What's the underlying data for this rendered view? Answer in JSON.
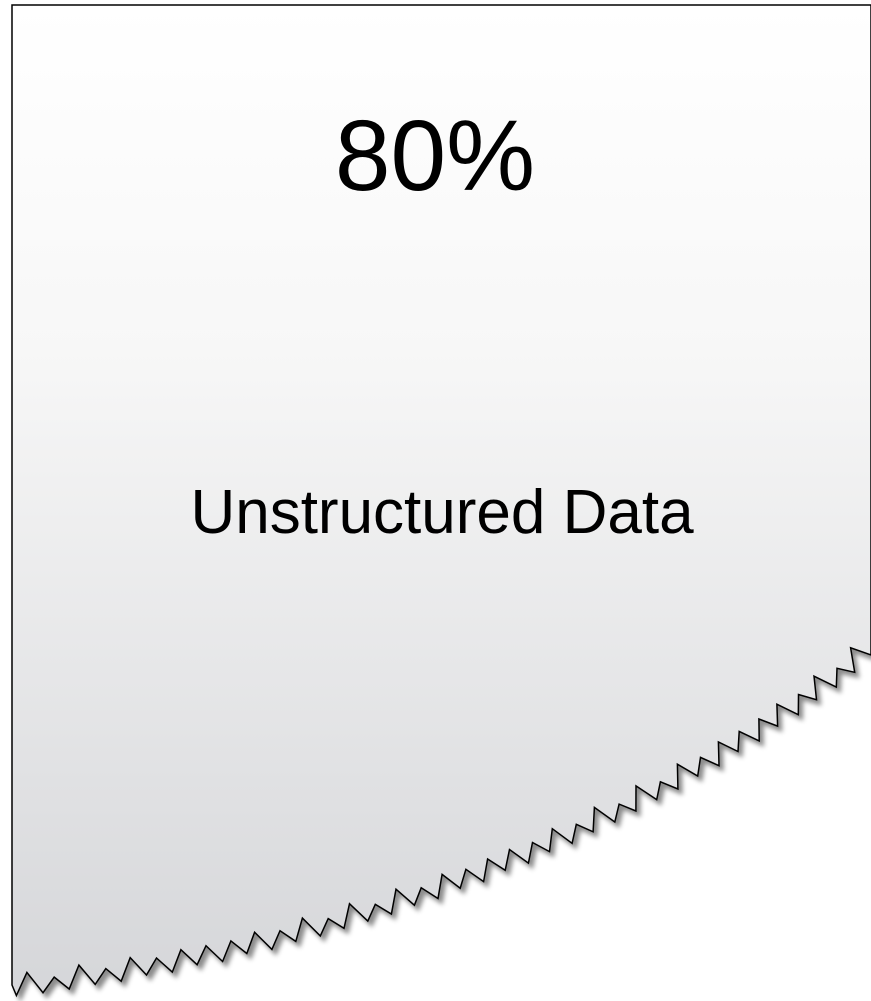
{
  "headline": "80%",
  "label": "Unstructured Data"
}
